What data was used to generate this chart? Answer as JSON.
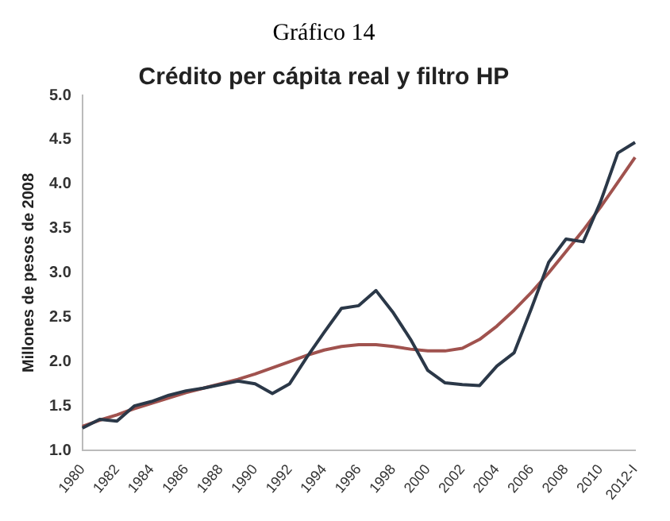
{
  "chart_data": {
    "type": "line",
    "title": "Gráfico 14",
    "subtitle": "Crédito per cápita real y filtro HP",
    "ylabel": "Millones de pesos de 2008",
    "categories": [
      "1980",
      null,
      "1982",
      null,
      "1984",
      null,
      "1986",
      null,
      "1988",
      null,
      "1990",
      null,
      "1992",
      null,
      "1994",
      null,
      "1996",
      null,
      "1998",
      null,
      "2000",
      null,
      "2002",
      null,
      "2004",
      null,
      "2006",
      null,
      "2008",
      null,
      "2010",
      null,
      "2012-I"
    ],
    "series": [
      {
        "color": "#2b3848",
        "values": [
          1.25,
          1.35,
          1.33,
          1.5,
          1.55,
          1.62,
          1.67,
          1.7,
          1.74,
          1.78,
          1.75,
          1.64,
          1.75,
          2.05,
          2.33,
          2.6,
          2.63,
          2.8,
          2.55,
          2.25,
          1.9,
          1.76,
          1.74,
          1.73,
          1.95,
          2.1,
          2.6,
          3.12,
          3.38,
          3.35,
          3.8,
          4.35,
          4.47
        ]
      },
      {
        "color": "#a0524e",
        "values": [
          1.27,
          1.34,
          1.4,
          1.47,
          1.53,
          1.59,
          1.65,
          1.7,
          1.75,
          1.8,
          1.86,
          1.93,
          2.0,
          2.07,
          2.13,
          2.17,
          2.19,
          2.19,
          2.17,
          2.14,
          2.12,
          2.12,
          2.15,
          2.25,
          2.4,
          2.58,
          2.78,
          3.0,
          3.24,
          3.48,
          3.74,
          4.02,
          4.3
        ]
      }
    ],
    "ylim": [
      1.0,
      5.0
    ],
    "yticks": [
      {
        "value": 1,
        "label": "1.0"
      },
      1.5,
      {
        "value": 2,
        "label": "2.0"
      },
      2.5,
      {
        "value": 3,
        "label": "3.0"
      },
      3.5,
      {
        "value": 4,
        "label": "4.0"
      },
      4.5,
      {
        "value": 5,
        "label": "5.0"
      }
    ],
    "grid": false,
    "legend": false
  }
}
